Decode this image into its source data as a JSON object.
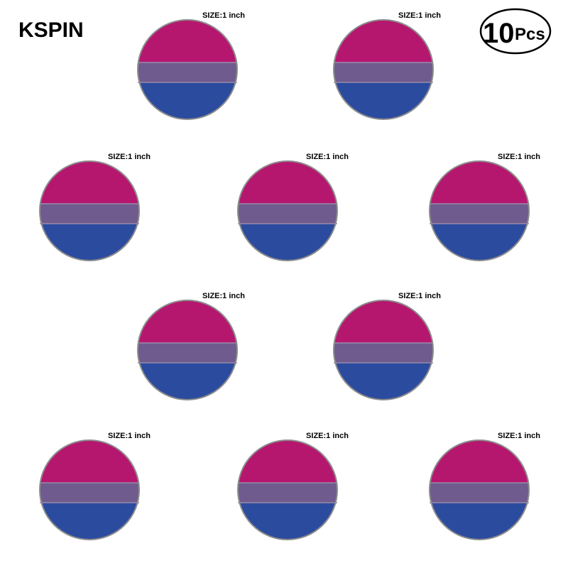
{
  "header": {
    "brand": "KSPIN",
    "quantity": "10",
    "unit": "Pcs"
  },
  "pins": [
    {
      "size_label": "SIZE:1 inch"
    },
    {
      "size_label": "SIZE:1 inch"
    },
    {
      "size_label": "SIZE:1 inch"
    },
    {
      "size_label": "SIZE:1 inch"
    },
    {
      "size_label": "SIZE:1 inch"
    },
    {
      "size_label": "SIZE:1 inch"
    },
    {
      "size_label": "SIZE:1 inch"
    },
    {
      "size_label": "SIZE:1 inch"
    },
    {
      "size_label": "SIZE:1 inch"
    },
    {
      "size_label": "SIZE:1 inch"
    }
  ]
}
